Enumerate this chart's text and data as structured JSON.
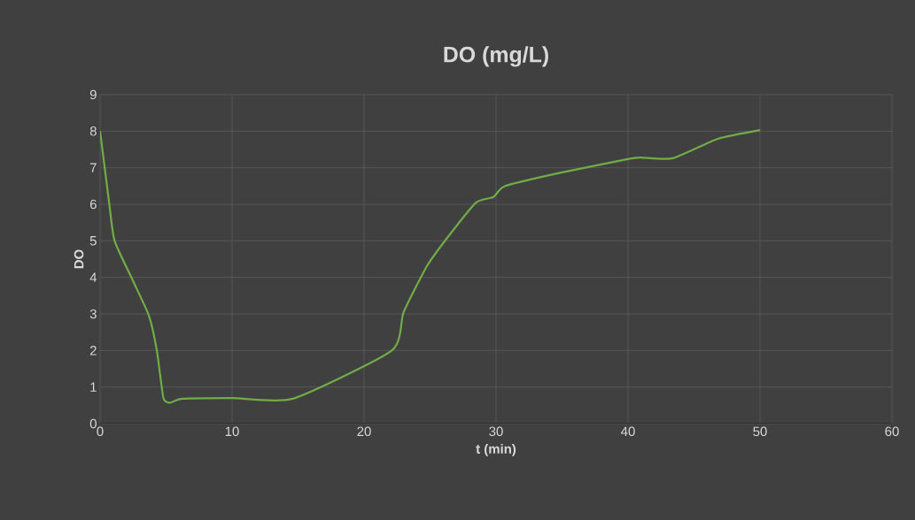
{
  "chart_data": {
    "type": "line",
    "title": "DO (mg/L)",
    "xlabel": "t (min)",
    "ylabel": "DO",
    "xlim": [
      0,
      60
    ],
    "xticks": [
      0,
      10,
      20,
      30,
      40,
      50,
      60
    ],
    "ylim": [
      0,
      9
    ],
    "yticks": [
      0,
      1,
      2,
      3,
      4,
      5,
      6,
      7,
      8,
      9
    ],
    "grid": true,
    "series": [
      {
        "color": "#70ad47",
        "x": [
          0,
          0.7,
          1.1,
          2.5,
          3.7,
          4.3,
          4.8,
          5.3,
          6.2,
          10,
          14.6,
          22.1,
          23,
          24.8,
          26.6,
          28.5,
          29.8,
          30.7,
          34.7,
          39.9,
          40.9,
          43.4,
          46.8,
          50
        ],
        "values": [
          8.0,
          6.0,
          5.0,
          3.9,
          2.95,
          2.0,
          0.7,
          0.57,
          0.68,
          0.7,
          0.68,
          2.0,
          3.05,
          4.33,
          5.22,
          6.05,
          6.2,
          6.5,
          6.85,
          7.23,
          7.28,
          7.26,
          7.79,
          8.03
        ]
      }
    ]
  }
}
